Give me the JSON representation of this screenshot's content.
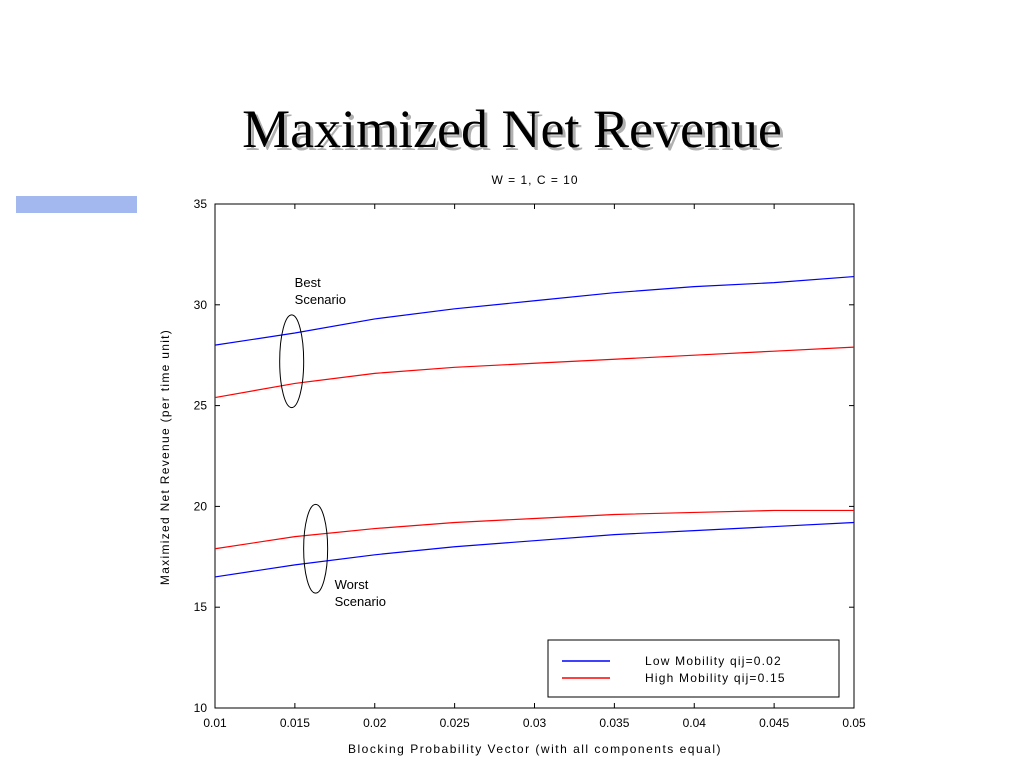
{
  "slide": {
    "title": "Maximized Net Revenue",
    "accent_color": "#a4b8f0"
  },
  "chart_data": {
    "type": "line",
    "title": "W = 1, C = 10",
    "xlabel": "Blocking Probability Vector (with all components equal)",
    "ylabel": "Maximized Net Revenue (per time unit)",
    "xlim": [
      0.01,
      0.05
    ],
    "ylim": [
      10,
      35
    ],
    "xticks": [
      "0.01",
      "0.015",
      "0.02",
      "0.025",
      "0.03",
      "0.035",
      "0.04",
      "0.045",
      "0.05"
    ],
    "yticks": [
      "10",
      "15",
      "20",
      "25",
      "30",
      "35"
    ],
    "grid": false,
    "legend_position": "bottom-right",
    "x": [
      0.01,
      0.015,
      0.02,
      0.025,
      0.03,
      0.035,
      0.04,
      0.045,
      0.05
    ],
    "series": [
      {
        "name": "Low Mobility qij=0.02",
        "color": "#0000ff",
        "group": "best",
        "values": [
          28.0,
          28.6,
          29.3,
          29.8,
          30.2,
          30.6,
          30.9,
          31.1,
          31.4
        ]
      },
      {
        "name": "High Mobility qij=0.15",
        "color": "#ff0000",
        "group": "best",
        "values": [
          25.4,
          26.1,
          26.6,
          26.9,
          27.1,
          27.3,
          27.5,
          27.7,
          27.9
        ]
      },
      {
        "name": "High Mobility qij=0.15",
        "color": "#ff0000",
        "group": "worst",
        "values": [
          17.9,
          18.5,
          18.9,
          19.2,
          19.4,
          19.6,
          19.7,
          19.8,
          19.8
        ]
      },
      {
        "name": "Low Mobility qij=0.02",
        "color": "#0000ff",
        "group": "worst",
        "values": [
          16.5,
          17.1,
          17.6,
          18.0,
          18.3,
          18.6,
          18.8,
          19.0,
          19.2
        ]
      }
    ],
    "legend": [
      {
        "label": "Low Mobility qij=0.02",
        "color": "#0000ff"
      },
      {
        "label": "High Mobility qij=0.15",
        "color": "#ff0000"
      }
    ],
    "annotations": [
      {
        "text": [
          "Best",
          "Scenario"
        ],
        "ellipse_center": [
          0.0148,
          27.2
        ],
        "ellipse_ry": 2.3
      },
      {
        "text": [
          "Worst",
          "Scenario"
        ],
        "ellipse_center": [
          0.0163,
          17.9
        ],
        "ellipse_ry": 2.2
      }
    ]
  }
}
